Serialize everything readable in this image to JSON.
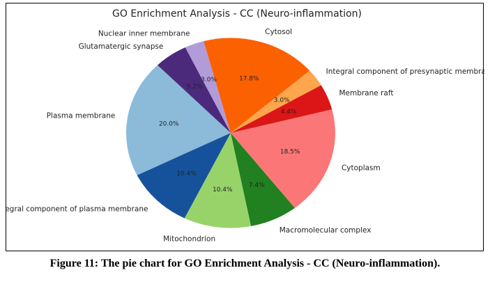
{
  "caption": "Figure 11: The pie chart for GO Enrichment Analysis - CC (Neuro-inflammation).",
  "chart_data": {
    "type": "pie",
    "title": "GO Enrichment Analysis - CC (Neuro-inflammation)",
    "start_angle_deg": 105,
    "direction": "counterclockwise",
    "slices": [
      {
        "label": "Nuclear inner membrane",
        "value": 3.0,
        "pct_text": "3.0%",
        "color": "#b19cd9"
      },
      {
        "label": "Glutamatergic synapse",
        "value": 5.2,
        "pct_text": "5.2%",
        "color": "#4b2a7b"
      },
      {
        "label": "Plasma membrane",
        "value": 20.0,
        "pct_text": "20.0%",
        "color": "#8bbbd9"
      },
      {
        "label": "Integral component of plasma membrane",
        "value": 10.4,
        "pct_text": "10.4%",
        "color": "#16529b"
      },
      {
        "label": "Mitochondrion",
        "value": 10.4,
        "pct_text": "10.4%",
        "color": "#98d36a"
      },
      {
        "label": "Macromolecular complex",
        "value": 7.4,
        "pct_text": "7.4%",
        "color": "#21801f"
      },
      {
        "label": "Cytoplasm",
        "value": 18.5,
        "pct_text": "18.5%",
        "color": "#fb7777"
      },
      {
        "label": "Membrane raft",
        "value": 4.4,
        "pct_text": "4.4%",
        "color": "#dc1616"
      },
      {
        "label": "Integral component of presynaptic membrane",
        "value": 3.0,
        "pct_text": "3.0%",
        "color": "#fda64d"
      },
      {
        "label": "Cytosol",
        "value": 17.8,
        "pct_text": "17.8%",
        "color": "#fb6100"
      }
    ]
  }
}
